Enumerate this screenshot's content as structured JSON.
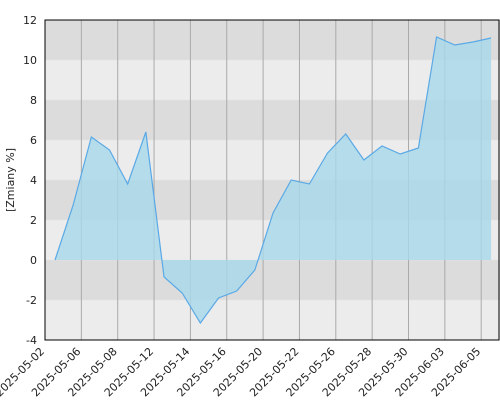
{
  "chart_data": {
    "type": "area",
    "y_label": "[Zmiany %]",
    "x_tick_labels": [
      "2025-05-02",
      "2025-05-06",
      "2025-05-08",
      "2025-05-12",
      "2025-05-14",
      "2025-05-16",
      "2025-05-20",
      "2025-05-22",
      "2025-05-26",
      "2025-05-28",
      "2025-05-30",
      "2025-06-03",
      "2025-06-05"
    ],
    "values": [
      0,
      2.75,
      6.15,
      5.5,
      3.8,
      6.4,
      -0.85,
      -1.65,
      -3.15,
      -1.9,
      -1.55,
      -0.5,
      2.35,
      4.0,
      3.8,
      5.35,
      6.3,
      5.0,
      5.7,
      5.3,
      5.6,
      11.15,
      10.75,
      10.9,
      11.1
    ],
    "color": "#5aa9e6",
    "fill": "#a8d8ea",
    "ylim": [
      -4,
      12
    ],
    "yticks": [
      -4,
      -2,
      0,
      2,
      4,
      6,
      8,
      10,
      12
    ],
    "grid": true
  }
}
